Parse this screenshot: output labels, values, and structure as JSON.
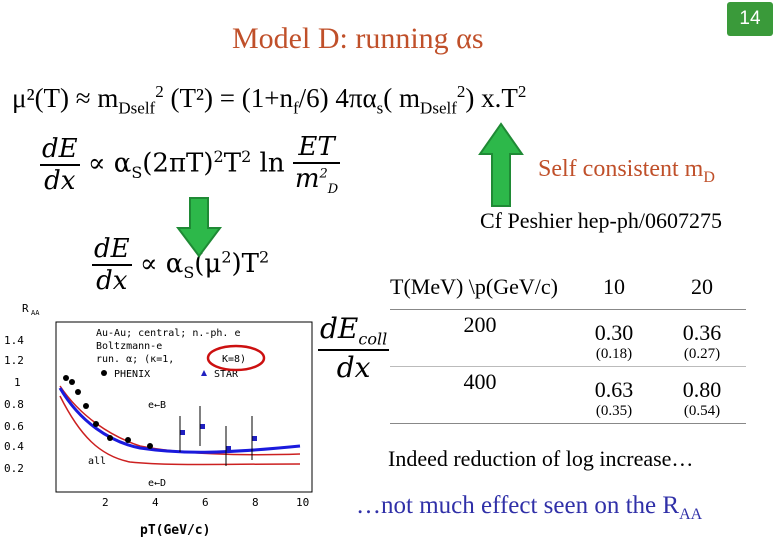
{
  "slide": {
    "title": "Model D: running αs",
    "page_number": "14"
  },
  "formula": {
    "mu2": "μ²(T) ≈ m",
    "dself1": "Dself",
    "mid": "(T²) = (1+n",
    "f": "f",
    "mid2": "/6) 4πα",
    "s": "s",
    "mid3": "( m",
    "dself2": "Dself",
    "tail": ") x.T"
  },
  "eq1": {
    "num": "dE",
    "den": "dx",
    "prop": "∝ α",
    "s": "S",
    "body": "(2πT)",
    "body2": "T",
    "ln": "ln",
    "num2": "ET",
    "den2": "m",
    "den2sub": "D"
  },
  "eq2": {
    "num": "dE",
    "den": "dx",
    "prop": "∝ α",
    "s": "S",
    "body": "(μ",
    "body2": ")T"
  },
  "annotation": {
    "self_consistent": "Self consistent m",
    "self_consistent_sub": "D",
    "cf": "Cf Peshier hep-ph/0607275"
  },
  "table": {
    "header": [
      "T(MeV) \\p(GeV/c)",
      "10",
      "20"
    ],
    "rows": [
      {
        "T": "200",
        "v10": "0.30",
        "s10": "(0.18)",
        "v20": "0.36",
        "s20": "(0.27)"
      },
      {
        "T": "400",
        "v10": "0.63",
        "s10": "(0.35)",
        "v20": "0.80",
        "s20": "(0.54)"
      }
    ]
  },
  "dEcoll": {
    "num": "dE",
    "sub": "coll",
    "den": "dx"
  },
  "bottom": {
    "line1": "Indeed reduction of log increase…",
    "line2": "…not  much effect seen on the R",
    "line2_sub": "AA"
  },
  "plot": {
    "ylabel": "R",
    "ylabel_sub": "AA",
    "xlabel": "pT(GeV/c)",
    "yticks": [
      "1.4",
      "1.2",
      "1",
      "0.8",
      "0.6",
      "0.4",
      "0.2"
    ],
    "xticks": [
      "2",
      "4",
      "6",
      "8",
      "10"
    ],
    "legend_line1": "Au-Au; central; n.-ph. e",
    "legend_line2": "Boltzmann-e",
    "legend_line3": "run. α; (κ=1,",
    "legend_k": "K=8)",
    "phenix": "PHENIX",
    "star": "STAR",
    "label_eB": "e←B",
    "label_eD": "e←D",
    "label_all": "all",
    "colors": {
      "all": "#1a1add",
      "eB": "#cc2020",
      "eD": "#c02020",
      "highlight": "#cc1010",
      "arrow": "#2db84a",
      "arrow_stroke": "#1f8a35"
    }
  }
}
